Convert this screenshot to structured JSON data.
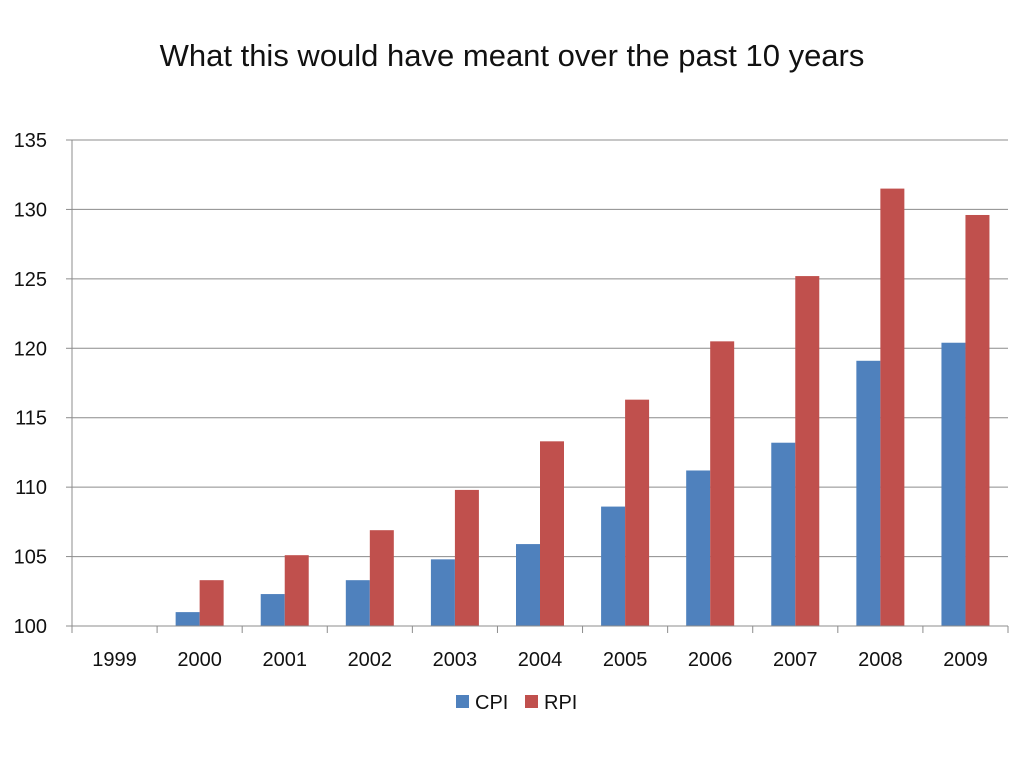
{
  "chart_data": {
    "type": "bar",
    "title": "What this would have meant over the past 10 years",
    "xlabel": "",
    "ylabel": "",
    "categories": [
      "1999",
      "2000",
      "2001",
      "2002",
      "2003",
      "2004",
      "2005",
      "2006",
      "2007",
      "2008",
      "2009"
    ],
    "series": [
      {
        "name": "CPI",
        "color": "#4f81bd",
        "values": [
          100,
          101.0,
          102.3,
          103.3,
          104.8,
          105.9,
          108.6,
          111.2,
          113.2,
          119.1,
          120.4
        ]
      },
      {
        "name": "RPI",
        "color": "#c0504d",
        "values": [
          100,
          103.3,
          105.1,
          106.9,
          109.8,
          113.3,
          116.3,
          120.5,
          125.2,
          131.5,
          129.6
        ]
      }
    ],
    "ylim": [
      100,
      135
    ],
    "yticks": [
      "100",
      "105",
      "110",
      "115",
      "120",
      "125",
      "130",
      "135"
    ],
    "grid": true,
    "legend": "bottom"
  }
}
